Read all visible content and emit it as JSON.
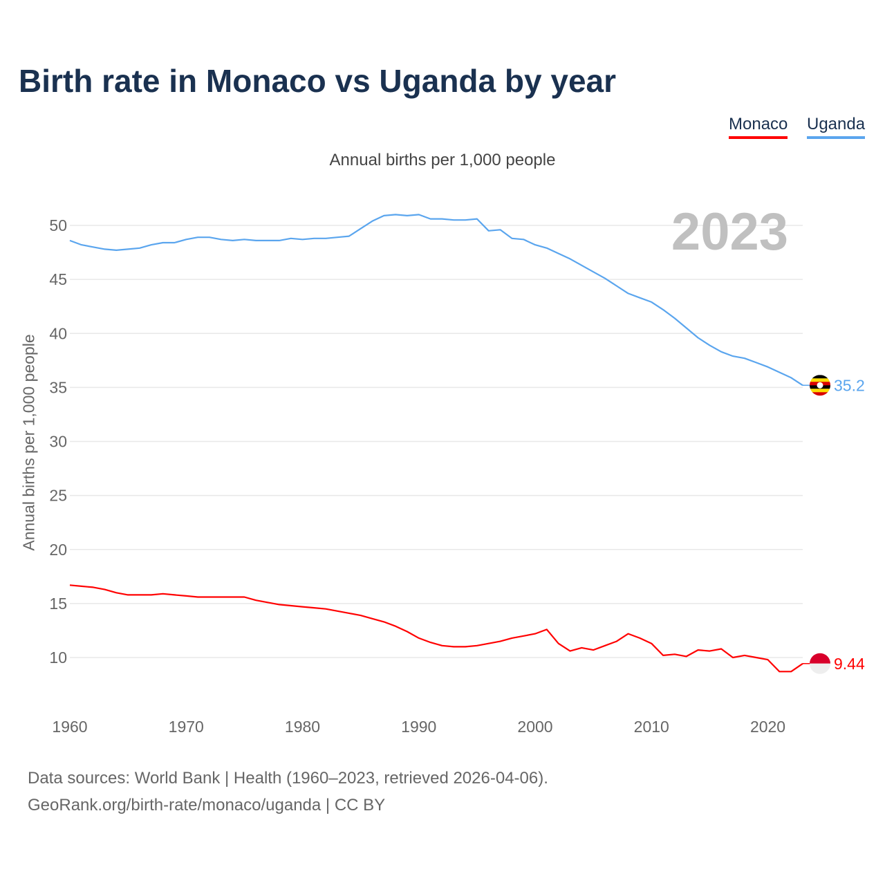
{
  "title": "Birth rate in Monaco vs Uganda by year",
  "legend": {
    "monaco": "Monaco",
    "uganda": "Uganda"
  },
  "footer": {
    "line1": "Data sources: World Bank | Health (1960–2023, retrieved 2026-04-06).",
    "line2": "GeoRank.org/birth-rate/monaco/uganda | CC BY"
  },
  "chart_data": {
    "type": "line",
    "title": "Birth rate in Monaco vs Uganda by year",
    "subtitle": "Annual births per 1,000 people",
    "ylabel": "Annual births per 1,000 people",
    "xlabel": "",
    "year_watermark": "2023",
    "xlim": [
      1960,
      2023
    ],
    "ylim": [
      5,
      53
    ],
    "xticks": [
      1960,
      1970,
      1980,
      1990,
      2000,
      2010,
      2020
    ],
    "yticks": [
      10,
      15,
      20,
      25,
      30,
      35,
      40,
      45,
      50
    ],
    "grid": true,
    "legend_position": "top-right",
    "x": [
      1960,
      1961,
      1962,
      1963,
      1964,
      1965,
      1966,
      1967,
      1968,
      1969,
      1970,
      1971,
      1972,
      1973,
      1974,
      1975,
      1976,
      1977,
      1978,
      1979,
      1980,
      1981,
      1982,
      1983,
      1984,
      1985,
      1986,
      1987,
      1988,
      1989,
      1990,
      1991,
      1992,
      1993,
      1994,
      1995,
      1996,
      1997,
      1998,
      1999,
      2000,
      2001,
      2002,
      2003,
      2004,
      2005,
      2006,
      2007,
      2008,
      2009,
      2010,
      2011,
      2012,
      2013,
      2014,
      2015,
      2016,
      2017,
      2018,
      2019,
      2020,
      2021,
      2022,
      2023
    ],
    "series": [
      {
        "name": "Monaco",
        "color": "#ff0000",
        "end_label": "9.44",
        "values": [
          16.7,
          16.6,
          16.5,
          16.3,
          16.0,
          15.8,
          15.8,
          15.8,
          15.9,
          15.8,
          15.7,
          15.6,
          15.6,
          15.6,
          15.6,
          15.6,
          15.3,
          15.1,
          14.9,
          14.8,
          14.7,
          14.6,
          14.5,
          14.3,
          14.1,
          13.9,
          13.6,
          13.3,
          12.9,
          12.4,
          11.8,
          11.4,
          11.1,
          11.0,
          11.0,
          11.1,
          11.3,
          11.5,
          11.8,
          12.0,
          12.2,
          12.6,
          11.3,
          10.6,
          10.9,
          10.7,
          11.1,
          11.5,
          12.2,
          11.8,
          11.3,
          10.2,
          10.3,
          10.1,
          10.7,
          10.6,
          10.8,
          10.0,
          10.2,
          10.0,
          9.8,
          8.7,
          8.7,
          9.44
        ]
      },
      {
        "name": "Uganda",
        "color": "#5aa5ee",
        "end_label": "35.2",
        "values": [
          48.6,
          48.2,
          48.0,
          47.8,
          47.7,
          47.8,
          47.9,
          48.2,
          48.4,
          48.4,
          48.7,
          48.9,
          48.9,
          48.7,
          48.6,
          48.7,
          48.6,
          48.6,
          48.6,
          48.8,
          48.7,
          48.8,
          48.8,
          48.9,
          49.0,
          49.7,
          50.4,
          50.9,
          51.0,
          50.9,
          51.0,
          50.6,
          50.6,
          50.5,
          50.5,
          50.6,
          49.5,
          49.6,
          48.8,
          48.7,
          48.2,
          47.9,
          47.4,
          46.9,
          46.3,
          45.7,
          45.1,
          44.4,
          43.7,
          43.3,
          42.9,
          42.2,
          41.4,
          40.5,
          39.6,
          38.9,
          38.3,
          37.9,
          37.7,
          37.3,
          36.9,
          36.4,
          35.9,
          35.2
        ]
      }
    ]
  }
}
